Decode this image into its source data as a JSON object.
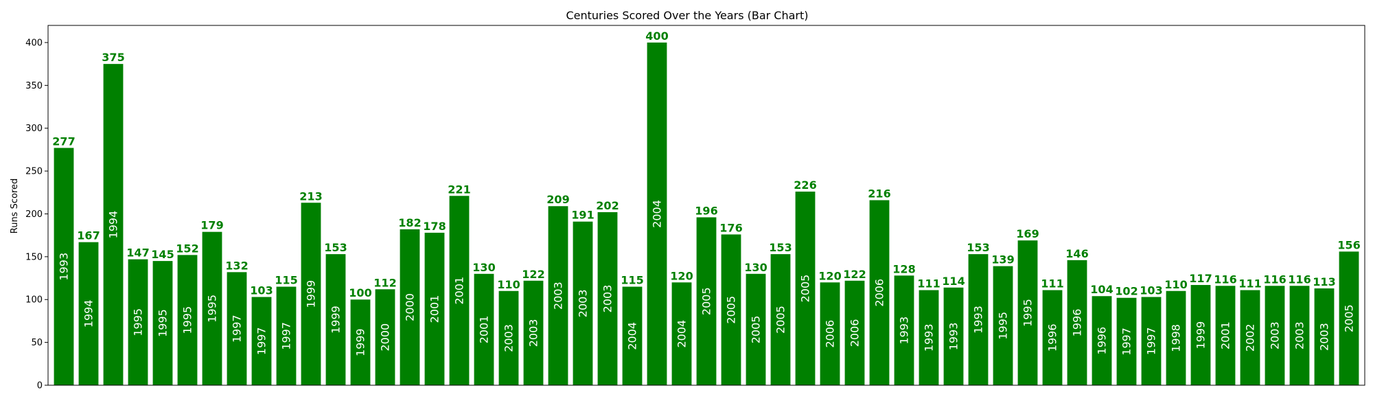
{
  "chart_data": {
    "type": "bar",
    "title": "Centuries Scored Over the Years (Bar Chart)",
    "xlabel": "",
    "ylabel": "Runs Scored",
    "ylim": [
      0,
      420
    ],
    "yticks": [
      0,
      50,
      100,
      150,
      200,
      250,
      300,
      350,
      400
    ],
    "grid": false,
    "bar_color": "#008000",
    "label_color": "#008000",
    "inner_label_color": "#ffffff",
    "categories": [
      "1993",
      "1994",
      "1994",
      "1995",
      "1995",
      "1995",
      "1995",
      "1997",
      "1997",
      "1997",
      "1999",
      "1999",
      "1999",
      "2000",
      "2000",
      "2001",
      "2001",
      "2001",
      "2003",
      "2003",
      "2003",
      "2003",
      "2003",
      "2004",
      "2004",
      "2004",
      "2005",
      "2005",
      "2005",
      "2005",
      "2005",
      "2006",
      "2006",
      "2006",
      "1993",
      "1993",
      "1993",
      "1993",
      "1995",
      "1995",
      "1996",
      "1996",
      "1996",
      "1997",
      "1997",
      "1998",
      "1999",
      "2001",
      "2002",
      "2003",
      "2003",
      "2003",
      "2005"
    ],
    "values": [
      277,
      167,
      375,
      147,
      145,
      152,
      179,
      132,
      103,
      115,
      213,
      153,
      100,
      112,
      182,
      178,
      221,
      130,
      110,
      122,
      209,
      191,
      202,
      115,
      400,
      120,
      196,
      176,
      130,
      153,
      226,
      120,
      122,
      216,
      128,
      111,
      114,
      153,
      139,
      169,
      111,
      146,
      104,
      102,
      103,
      110,
      117,
      116,
      111,
      116,
      116,
      113,
      156
    ]
  }
}
